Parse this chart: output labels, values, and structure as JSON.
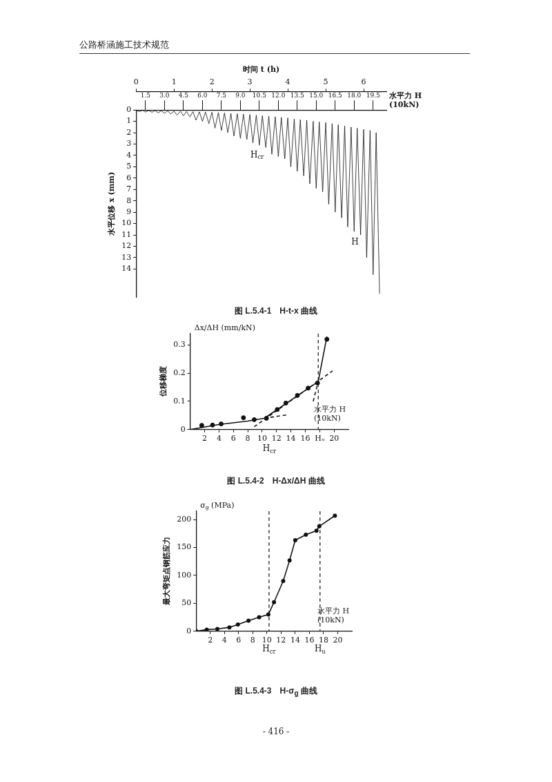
{
  "chart_data": [
    {
      "type": "line",
      "title": "图 L.5.4-1　H-t-x 曲线",
      "xlabel": "时间 t (h)",
      "x2label": "水平力 H (10kN)",
      "ylabel": "水平位移 x (mm)",
      "xlim": [
        0,
        6.6
      ],
      "xticks": [
        0,
        1,
        2,
        3,
        4,
        5,
        6
      ],
      "x2lim": [
        0.75,
        20.55
      ],
      "x2ticks": [
        1.5,
        {
          "value": 3,
          "label": "3.0"
        },
        4.5,
        {
          "value": 6,
          "label": "6.0"
        },
        7.5,
        {
          "value": 9,
          "label": "9.0"
        },
        10.5,
        {
          "value": 12,
          "label": "12.0"
        },
        13.5,
        {
          "value": 15,
          "label": "15.0"
        },
        16.5,
        {
          "value": 18,
          "label": "18.0"
        },
        19.5
      ],
      "ylim": [
        16.5,
        0
      ],
      "yticks": [
        0,
        1,
        2,
        3,
        4,
        5,
        6,
        7,
        8,
        9,
        10,
        11,
        12,
        13,
        14
      ],
      "grid": false,
      "legend": false,
      "marker": "none",
      "line_style": "solid",
      "series": [
        {
          "color": "#111111",
          "x": [
            0,
            0.08,
            0.17,
            0.25,
            0.33,
            0.42,
            0.5,
            0.58,
            0.67,
            0.75,
            0.83,
            0.92,
            1.0,
            1.08,
            1.17,
            1.25,
            1.33,
            1.42,
            1.5,
            1.58,
            1.67,
            1.75,
            1.83,
            1.92,
            2.0,
            2.08,
            2.17,
            2.25,
            2.33,
            2.42,
            2.5,
            2.58,
            2.67,
            2.75,
            2.83,
            2.92,
            3.0,
            3.08,
            3.17,
            3.25,
            3.33,
            3.42,
            3.5,
            3.58,
            3.67,
            3.75,
            3.83,
            3.92,
            4.0,
            4.08,
            4.17,
            4.25,
            4.33,
            4.42,
            4.5,
            4.58,
            4.67,
            4.75,
            4.83,
            4.92,
            5.0,
            5.08,
            5.17,
            5.25,
            5.33,
            5.42,
            5.5,
            5.58,
            5.67,
            5.75,
            5.83,
            5.92,
            6.0,
            6.08,
            6.17,
            6.25,
            6.33,
            6.42
          ],
          "values": [
            0,
            0.15,
            0.02,
            0.18,
            0.04,
            0.2,
            0.05,
            0.25,
            0.07,
            0.3,
            0.08,
            0.35,
            0.1,
            0.45,
            0.12,
            0.5,
            0.13,
            0.6,
            0.15,
            0.9,
            0.17,
            1.0,
            0.18,
            1.2,
            0.2,
            1.6,
            0.23,
            1.8,
            0.26,
            2.0,
            0.3,
            2.3,
            0.33,
            2.5,
            0.36,
            2.6,
            0.4,
            2.9,
            0.45,
            3.1,
            0.5,
            3.3,
            0.55,
            3.9,
            0.6,
            4.1,
            0.65,
            4.3,
            0.7,
            5.0,
            0.8,
            5.4,
            0.85,
            5.8,
            0.9,
            6.5,
            1.0,
            6.9,
            1.05,
            7.2,
            1.1,
            8.3,
            1.2,
            9.0,
            1.3,
            9.5,
            1.4,
            10.3,
            1.5,
            10.7,
            1.6,
            11.0,
            1.7,
            13.0,
            1.8,
            14.5,
            2.0,
            16.2
          ]
        }
      ],
      "annotations": [
        "公路桥涵施工技术规范",
        {
          "text": "H$_{cr}$",
          "x": 3.42,
          "y": 3.3
        },
        {
          "text": "H",
          "x": 5.92,
          "y": 11.0
        }
      ]
    },
    {
      "type": "line",
      "title": "图 L.5.4-2　H-Δx/ΔH 曲线",
      "xlabel": "水平力 H (10kN)",
      "ylabel": "位移梯度",
      "xlim": [
        0,
        22
      ],
      "xticks": [
        2,
        4,
        6,
        8,
        10,
        12,
        14,
        16,
        {
          "value": 18,
          "label": "Hᵤ"
        },
        20
      ],
      "ylim": [
        0,
        0.34
      ],
      "yticks": [
        0,
        0.1,
        0.2,
        0.3
      ],
      "grid": false,
      "legend": false,
      "marker": "none",
      "line_style": "solid",
      "series": [
        {
          "type": "scatter",
          "marker": "circle",
          "color": "#111111",
          "x": [
            1.6,
            3.1,
            4.3,
            7.4,
            8.9,
            10.6,
            12.1,
            13.3,
            14.9,
            16.4,
            17.7,
            19.0
          ],
          "values": [
            0.015,
            0.016,
            0.02,
            0.042,
            0.035,
            0.04,
            0.071,
            0.094,
            0.121,
            0.147,
            0.165,
            0.32
          ]
        },
        {
          "color": "#111111",
          "x": [
            0,
            4,
            8,
            10.3,
            17.8,
            19.0
          ],
          "values": [
            0,
            0.018,
            0.03,
            0.04,
            0.17,
            0.33
          ]
        },
        {
          "color": "#111111",
          "line_style": "dashed",
          "x": [
            10.3,
            13.4
          ],
          "values": [
            0.04,
            0.052
          ]
        },
        {
          "color": "#111111",
          "line_style": "dashed",
          "x": [
            8.9,
            19.8
          ],
          "values": [
            0.01,
            0.208
          ]
        },
        {
          "color": "#111111",
          "line_style": "dashed",
          "x": [
            17.1,
            17.8
          ],
          "values": [
            0.1,
            0.17
          ]
        }
      ],
      "ref_lines": [
        {
          "axis": "x",
          "value": 17.8,
          "line_style": "dashed",
          "color": "#111111"
        }
      ],
      "annotations": [
        "Δx/ΔH (mm/kN)",
        "H$_{cr}$"
      ]
    },
    {
      "type": "line",
      "title": "图 L.5.4-3　H-σ$_{g}$ 曲线",
      "xlabel": "水平力 H (10kN)",
      "ylabel": "最大弯矩点钢筋应力",
      "xlim": [
        0,
        22
      ],
      "xticks": [
        2,
        4,
        6,
        8,
        10,
        12,
        14,
        16,
        18,
        20
      ],
      "ylim": [
        0,
        215
      ],
      "yticks": [
        0,
        50,
        100,
        150,
        200
      ],
      "grid": false,
      "legend": false,
      "marker": "circle",
      "line_style": "solid",
      "series": [
        {
          "color": "#111111",
          "x": [
            0,
            1.5,
            3.0,
            4.7,
            5.9,
            7.4,
            8.9,
            10.2,
            11.0,
            12.3,
            13.2,
            14.0,
            15.5,
            17.0,
            17.4,
            19.6
          ],
          "values": [
            0,
            3,
            4,
            7,
            12,
            19,
            25,
            30,
            52,
            90,
            127,
            163,
            173,
            180,
            188,
            207
          ]
        }
      ],
      "ref_lines": [
        {
          "axis": "x",
          "value": 10.3,
          "line_style": "dashed",
          "color": "#111111"
        },
        {
          "axis": "x",
          "value": 17.5,
          "line_style": "dashed",
          "color": "#111111"
        }
      ],
      "annotations": [
        "σ$_{g}$ (MPa)",
        "- 416 -",
        {
          "text": "H$_{cr}$",
          "x": 10.3,
          "y": 0
        },
        {
          "text": "H$_{u}$",
          "x": 17.5,
          "y": 0
        }
      ]
    }
  ]
}
